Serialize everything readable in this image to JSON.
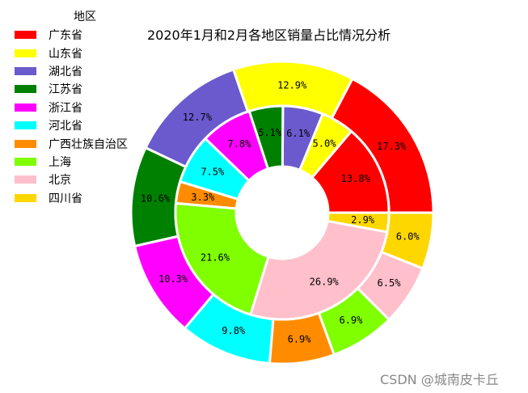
{
  "chart_data": {
    "type": "pie",
    "title": "2020年1月和2月各地区销量占比情况分析",
    "legend_title": "地区",
    "legend_position": "top-left",
    "categories": [
      "广东省",
      "山东省",
      "湖北省",
      "江苏省",
      "浙江省",
      "河北省",
      "广西壮族自治区",
      "上海",
      "北京",
      "四川省"
    ],
    "colors": [
      "#ff0000",
      "#ffff00",
      "#6a5acd",
      "#008000",
      "#ff00ff",
      "#00ffff",
      "#ff8c00",
      "#7fff00",
      "#ffc0cb",
      "#ffd700"
    ],
    "series": [
      {
        "values": [
          17.3,
          12.9,
          12.7,
          10.6,
          10.3,
          9.8,
          6.9,
          6.9,
          6.5,
          6.0
        ],
        "labels": [
          "17.3%",
          "12.9%",
          "12.7%",
          "10.6%",
          "10.3%",
          "9.8%",
          "6.9%",
          "6.9%",
          "6.5%",
          "6.0%"
        ]
      },
      {
        "values": [
          13.8,
          5.0,
          6.1,
          5.1,
          7.8,
          7.5,
          3.3,
          21.6,
          26.9,
          2.9
        ],
        "labels": [
          "13.8%",
          "5.0%",
          "6.1%",
          "5.1%",
          "7.8%",
          "7.5%",
          "3.3%",
          "21.6%",
          "26.9%",
          "2.9%"
        ]
      }
    ]
  },
  "watermark": "CSDN @城南皮卡丘"
}
